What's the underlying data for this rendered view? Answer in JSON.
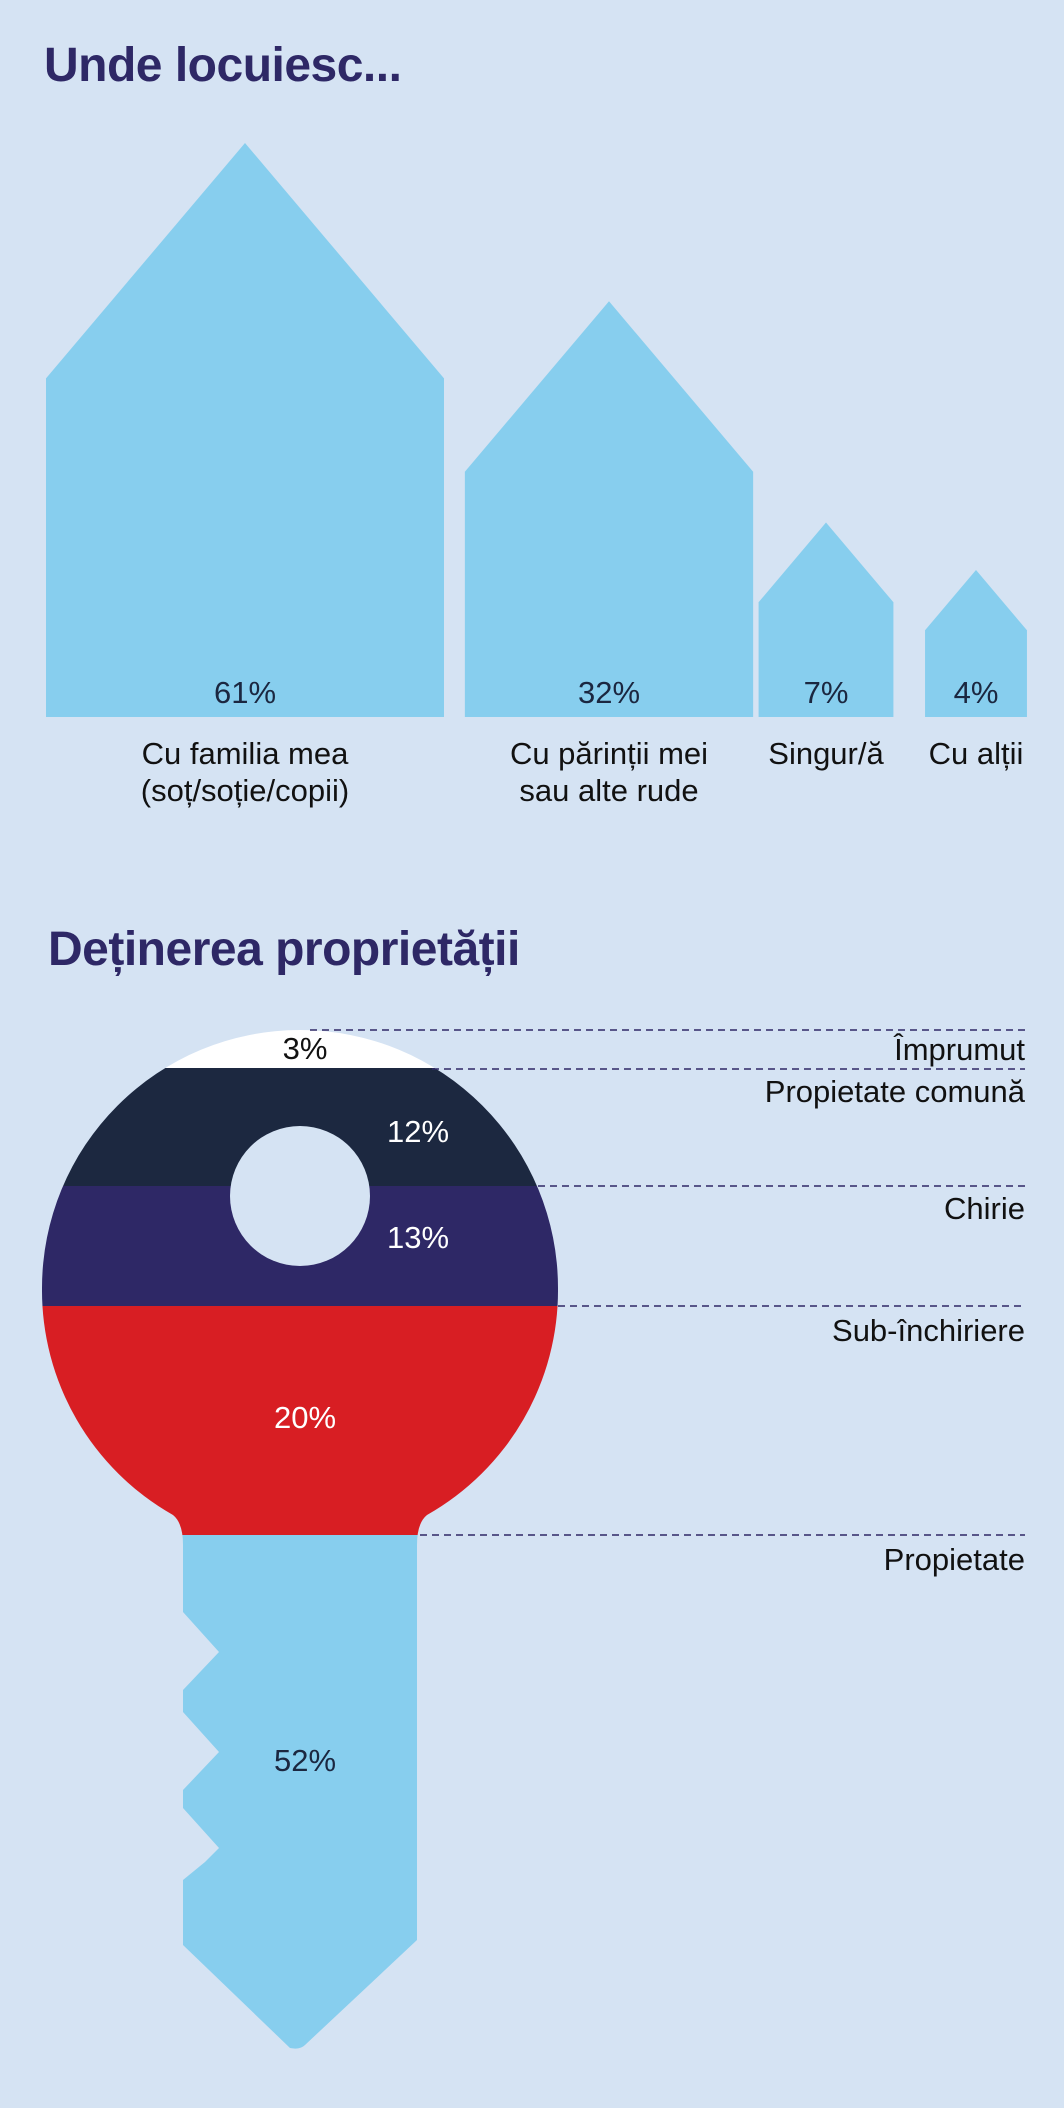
{
  "chart_data": [
    {
      "type": "bar",
      "title": "Unde locuiesc...",
      "categories": [
        [
          "Cu familia mea",
          "(soț/soție/copii)"
        ],
        [
          "Cu părinții mei",
          "sau alte rude"
        ],
        [
          "Singur/ă"
        ],
        [
          "Cu alții"
        ]
      ],
      "values": [
        61,
        32,
        7,
        4
      ],
      "value_labels": [
        "61%",
        "32%",
        "7%",
        "4%"
      ],
      "unit": "%",
      "colors": {
        "bar": "#87ceee"
      }
    },
    {
      "type": "bar",
      "title": "Deținerea proprietății",
      "categories": [
        "Împrumut",
        "Propietate comună",
        "Chirie",
        "Sub-închiriere",
        "Propietate"
      ],
      "values": [
        3,
        12,
        13,
        20,
        52
      ],
      "value_labels": [
        "3%",
        "12%",
        "13%",
        "20%",
        "52%"
      ],
      "unit": "%",
      "colors": [
        "#ffffff",
        "#1c2840",
        "#2e2866",
        "#d81e23",
        "#87ceee"
      ],
      "label_colors": [
        "#111111",
        "#ffffff",
        "#ffffff",
        "#ffffff",
        "#1b2740"
      ]
    }
  ]
}
